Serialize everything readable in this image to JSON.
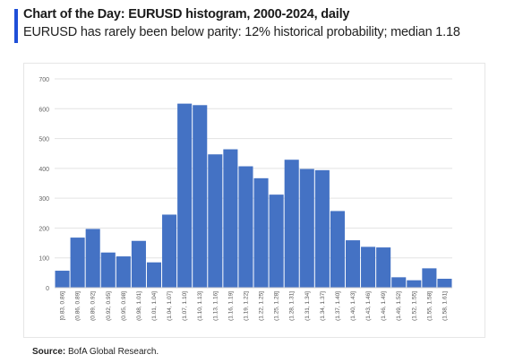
{
  "header": {
    "title": "Chart of the Day: EURUSD histogram, 2000-2024, daily",
    "subtitle": "EURUSD has rarely been below parity: 12% historical probability; median 1.18"
  },
  "footer": {
    "source_label": "Source:",
    "source_text": " BofA Global Research."
  },
  "colors": {
    "bar": "#4472c4",
    "accent": "#1f4fd8",
    "grid": "#e3e3e3"
  },
  "chart_data": {
    "type": "bar",
    "categories": [
      "[0.83, 0.86]",
      "(0.86, 0.89]",
      "(0.89, 0.92]",
      "(0.92, 0.95]",
      "(0.95, 0.98]",
      "(0.98, 1.01]",
      "(1.01, 1.04]",
      "(1.04, 1.07]",
      "(1.07, 1.10]",
      "(1.10, 1.13]",
      "(1.13, 1.16]",
      "(1.16, 1.19]",
      "(1.19, 1.22]",
      "(1.22, 1.25]",
      "(1.25, 1.28]",
      "(1.28, 1.31]",
      "(1.31, 1.34]",
      "(1.34, 1.37]",
      "(1.37, 1.40]",
      "(1.40, 1.43]",
      "(1.43, 1.46]",
      "(1.46, 1.49]",
      "(1.49, 1.52]",
      "(1.52, 1.55]",
      "(1.55, 1.58]",
      "(1.58, 1.61]"
    ],
    "visible_tick_labels": [
      "[0.83, 0.86]",
      "(0.86, 0.89]",
      "(0.89, 0.92]",
      "(0.92, 0.95]",
      "(0.95, 0.98]",
      "(0.98, 1.01]",
      "(1.01, 1.04]",
      "(1.04, 1.07]",
      "(1.07, 1.10]",
      "(1.10, 1.13]",
      "(1.13, 1.16]",
      "(1.16, 1.19]",
      "(1.19, 1.22]",
      "(1.22, 1.25]",
      "(1.25, 1.28]",
      "(1.28, 1.31]",
      "(1.31, 1.34]",
      "(1.34, 1.37]",
      "(1.37, 1.40]",
      "(1.40, 1.43]",
      "(1.43, 1.46]",
      "(1.46, 1.49]",
      "(1.49, 1.52]",
      "(1.52, 1.55]",
      "(1.55, 1.58]",
      "(1.58, 1.61]"
    ],
    "values": [
      57,
      168,
      197,
      118,
      105,
      157,
      85,
      245,
      617,
      612,
      447,
      464,
      407,
      367,
      312,
      429,
      398,
      394,
      257,
      159,
      137,
      135,
      35,
      25,
      65,
      30
    ],
    "ylim": [
      0,
      700
    ],
    "yticks": [
      0,
      100,
      200,
      300,
      400,
      500,
      600,
      700
    ],
    "grid": true,
    "legend": "none"
  }
}
